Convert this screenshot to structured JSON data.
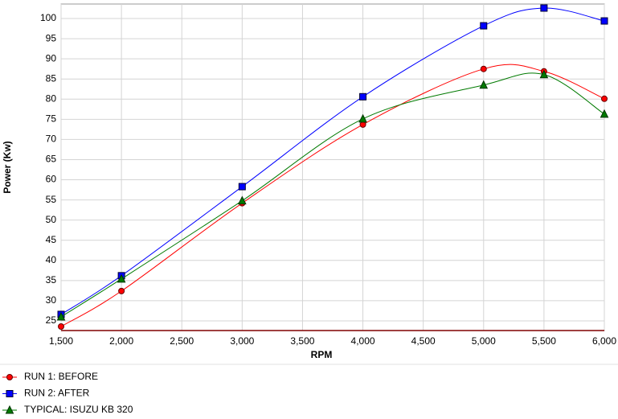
{
  "chart_data": {
    "type": "line",
    "x_label": "RPM",
    "y_label": "Power (Kw)",
    "x": [
      1500,
      2000,
      3000,
      4000,
      5000,
      5500,
      6000
    ],
    "series": [
      {
        "name": "RUN 1: BEFORE",
        "color": "#ff0000",
        "marker": "circle",
        "values": [
          23.6,
          32.4,
          54.2,
          73.7,
          87.5,
          86.9,
          80.1
        ]
      },
      {
        "name": "RUN 2: AFTER",
        "color": "#0000ff",
        "marker": "square",
        "values": [
          26.6,
          36.2,
          58.3,
          80.6,
          98.2,
          102.6,
          99.4
        ]
      },
      {
        "name": "TYPICAL: ISUZU KB 320",
        "color": "#007a00",
        "marker": "triangle",
        "values": [
          26.0,
          35.4,
          54.8,
          75.1,
          83.5,
          86.1,
          76.3
        ]
      }
    ],
    "xlim": [
      1500,
      6000
    ],
    "xticks": [
      {
        "value": 1500,
        "label": "1,500"
      },
      {
        "value": 2000,
        "label": "2,000"
      },
      {
        "value": 2500,
        "label": "2,500"
      },
      {
        "value": 3000,
        "label": "3,000"
      },
      {
        "value": 3500,
        "label": "3,500"
      },
      {
        "value": 4000,
        "label": "4,000"
      },
      {
        "value": 4500,
        "label": "4,500"
      },
      {
        "value": 5000,
        "label": "5,000"
      },
      {
        "value": 5500,
        "label": "5,500"
      },
      {
        "value": 6000,
        "label": "6,000"
      }
    ],
    "ylim": [
      22.6,
      103.6
    ],
    "yticks": [
      25,
      30,
      35,
      40,
      45,
      50,
      55,
      60,
      65,
      70,
      75,
      80,
      85,
      90,
      95,
      100
    ],
    "grid": true,
    "legend": "bottom-left"
  }
}
